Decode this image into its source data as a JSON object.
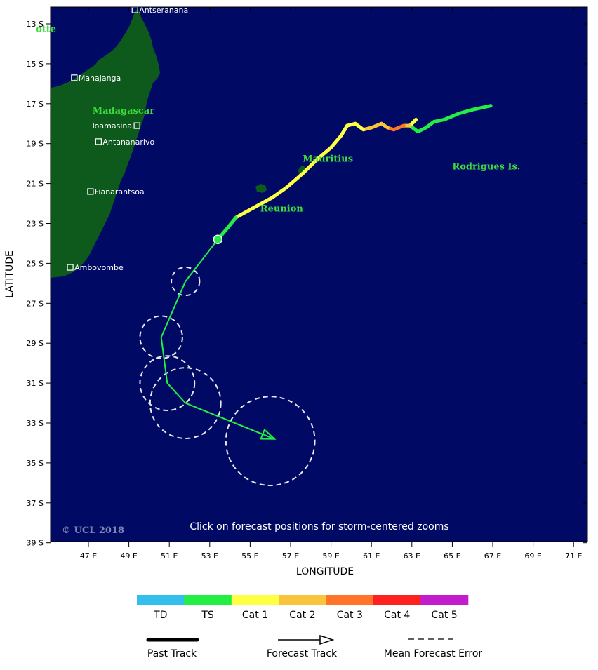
{
  "axes": {
    "x_label": "LONGITUDE",
    "y_label": "LATITUDE",
    "x_ticks": [
      {
        "v": 47,
        "label": "47 E"
      },
      {
        "v": 49,
        "label": "49 E"
      },
      {
        "v": 51,
        "label": "51 E"
      },
      {
        "v": 53,
        "label": "53 E"
      },
      {
        "v": 55,
        "label": "55 E"
      },
      {
        "v": 57,
        "label": "57 E"
      },
      {
        "v": 59,
        "label": "59 E"
      },
      {
        "v": 61,
        "label": "61 E"
      },
      {
        "v": 63,
        "label": "63 E"
      },
      {
        "v": 65,
        "label": "65 E"
      },
      {
        "v": 67,
        "label": "67 E"
      },
      {
        "v": 69,
        "label": "69 E"
      },
      {
        "v": 71,
        "label": "71 E"
      }
    ],
    "y_ticks": [
      {
        "v": -13,
        "label": "13 S"
      },
      {
        "v": -15,
        "label": "15 S"
      },
      {
        "v": -17,
        "label": "17 S"
      },
      {
        "v": -19,
        "label": "19 S"
      },
      {
        "v": -21,
        "label": "21 S"
      },
      {
        "v": -23,
        "label": "23 S"
      },
      {
        "v": -25,
        "label": "25 S"
      },
      {
        "v": -27,
        "label": "27 S"
      },
      {
        "v": -29,
        "label": "29 S"
      },
      {
        "v": -31,
        "label": "31 S"
      },
      {
        "v": -33,
        "label": "33 S"
      },
      {
        "v": -35,
        "label": "35 S"
      },
      {
        "v": -37,
        "label": "37 S"
      },
      {
        "v": -39,
        "label": "39 S"
      }
    ]
  },
  "map": {
    "ocean_color": "#000a64",
    "land_color": "#0e5a1c",
    "cities": [
      {
        "name": "Antseranana",
        "lon": 49.3,
        "lat": -12.3,
        "side": "right"
      },
      {
        "name": "Mahajanga",
        "lon": 46.3,
        "lat": -15.7,
        "side": "right"
      },
      {
        "name": "Toamasina",
        "lon": 49.4,
        "lat": -18.1,
        "side": "left"
      },
      {
        "name": "Antananarivo",
        "lon": 47.5,
        "lat": -18.9,
        "side": "right"
      },
      {
        "name": "Fianarantsoa",
        "lon": 47.1,
        "lat": -21.4,
        "side": "right"
      },
      {
        "name": "Ambovombe",
        "lon": 46.1,
        "lat": -25.2,
        "side": "right"
      }
    ],
    "regions": [
      {
        "name": "Madagascar",
        "lon": 47.2,
        "lat": -17.5
      },
      {
        "name": "Mauritius",
        "lon": 57.6,
        "lat": -19.9
      },
      {
        "name": "Reunion",
        "lon": 55.5,
        "lat": -22.4
      },
      {
        "name": "Rodrigues Is.",
        "lon": 65.0,
        "lat": -20.3
      },
      {
        "name": "otte",
        "lon": 44.4,
        "lat": -13.4
      }
    ],
    "notice": "Click on forecast positions for storm-centered zooms",
    "copyright": "© UCL 2018"
  },
  "past_track": [
    {
      "lon": 66.9,
      "lat": -17.1,
      "cat": "TS"
    },
    {
      "lon": 66.0,
      "lat": -17.3,
      "cat": "TS"
    },
    {
      "lon": 65.3,
      "lat": -17.5,
      "cat": "TS"
    },
    {
      "lon": 64.6,
      "lat": -17.8,
      "cat": "TS"
    },
    {
      "lon": 64.1,
      "lat": -17.9,
      "cat": "TS"
    },
    {
      "lon": 63.7,
      "lat": -18.2,
      "cat": "TS"
    },
    {
      "lon": 63.3,
      "lat": -18.4,
      "cat": "TS"
    },
    {
      "lon": 62.9,
      "lat": -18.1,
      "cat": "TS"
    },
    {
      "lon": 63.2,
      "lat": -17.8,
      "cat": "Cat 1"
    },
    {
      "lon": 62.9,
      "lat": -18.1,
      "cat": "Cat 2"
    },
    {
      "lon": 62.6,
      "lat": -18.1,
      "cat": "Cat 3"
    },
    {
      "lon": 62.1,
      "lat": -18.3,
      "cat": "Cat 3"
    },
    {
      "lon": 61.8,
      "lat": -18.2,
      "cat": "Cat 2"
    },
    {
      "lon": 61.5,
      "lat": -18.0,
      "cat": "Cat 2"
    },
    {
      "lon": 61.0,
      "lat": -18.2,
      "cat": "Cat 2"
    },
    {
      "lon": 60.6,
      "lat": -18.3,
      "cat": "Cat 1"
    },
    {
      "lon": 60.2,
      "lat": -18.0,
      "cat": "Cat 1"
    },
    {
      "lon": 59.8,
      "lat": -18.1,
      "cat": "Cat 1"
    },
    {
      "lon": 59.5,
      "lat": -18.6,
      "cat": "Cat 1"
    },
    {
      "lon": 59.0,
      "lat": -19.2,
      "cat": "Cat 1"
    },
    {
      "lon": 58.3,
      "lat": -19.8,
      "cat": "Cat 1"
    },
    {
      "lon": 57.6,
      "lat": -20.5,
      "cat": "Cat 1"
    },
    {
      "lon": 56.8,
      "lat": -21.2,
      "cat": "Cat 1"
    },
    {
      "lon": 56.1,
      "lat": -21.7,
      "cat": "Cat 1"
    },
    {
      "lon": 55.2,
      "lat": -22.2,
      "cat": "Cat 1"
    },
    {
      "lon": 54.3,
      "lat": -22.7,
      "cat": "TS"
    },
    {
      "lon": 53.9,
      "lat": -23.2,
      "cat": "TS"
    },
    {
      "lon": 53.4,
      "lat": -23.8,
      "cat": "TS"
    }
  ],
  "forecast_track": [
    {
      "lon": 53.4,
      "lat": -23.8
    },
    {
      "lon": 51.8,
      "lat": -25.9
    },
    {
      "lon": 50.6,
      "lat": -28.7
    },
    {
      "lon": 50.9,
      "lat": -31.0
    },
    {
      "lon": 51.8,
      "lat": -32.0
    },
    {
      "lon": 56.2,
      "lat": -33.8
    }
  ],
  "current_position": {
    "lon": 53.4,
    "lat": -23.8
  },
  "error_circles": [
    {
      "lon": 51.8,
      "lat": -25.9,
      "r": 0.7
    },
    {
      "lon": 50.6,
      "lat": -28.7,
      "r": 1.05
    },
    {
      "lon": 50.9,
      "lat": -31.0,
      "r": 1.35
    },
    {
      "lon": 51.8,
      "lat": -32.0,
      "r": 1.75
    },
    {
      "lon": 56.0,
      "lat": -33.9,
      "r": 2.2
    }
  ],
  "legend": {
    "scale": [
      {
        "label": "TD",
        "color": "#33bfee"
      },
      {
        "label": "TS",
        "color": "#22ee44"
      },
      {
        "label": "Cat 1",
        "color": "#ffff44"
      },
      {
        "label": "Cat 2",
        "color": "#f8c43c"
      },
      {
        "label": "Cat 3",
        "color": "#ff7428"
      },
      {
        "label": "Cat 4",
        "color": "#ff2020"
      },
      {
        "label": "Cat 5",
        "color": "#c21ccc"
      }
    ],
    "past_track": "Past Track",
    "forecast_track": "Forecast Track",
    "mean_error": "Mean Forecast Error"
  }
}
